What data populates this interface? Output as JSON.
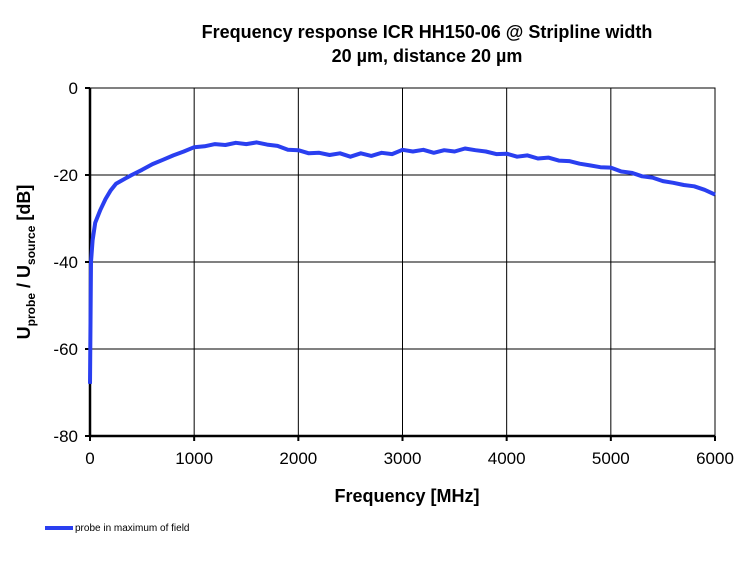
{
  "chart_data": {
    "type": "line",
    "title": [
      "Frequency response ICR HH150-06 @ Stripline  width",
      "20 µm, distance 20 µm"
    ],
    "xlabel": "Frequency [MHz]",
    "ylabel": {
      "main1": "U",
      "sub1": "probe",
      "mid": " / U",
      "sub2": "source",
      "tail": " [dB]"
    },
    "xlim": [
      0,
      6000
    ],
    "ylim": [
      -80,
      0
    ],
    "xticks": [
      "0",
      "1000",
      "2000",
      "3000",
      "4000",
      "5000",
      "6000"
    ],
    "yticks": [
      "0",
      "-20",
      "-40",
      "-60",
      "-80"
    ],
    "grid": true,
    "legend_position": "bottom-left",
    "series": [
      {
        "name": "probe in maximum of field",
        "color": "#2a3ff0",
        "x": [
          0,
          10,
          25,
          50,
          100,
          150,
          200,
          250,
          300,
          400,
          500,
          600,
          700,
          800,
          900,
          1000,
          1100,
          1200,
          1300,
          1400,
          1500,
          1600,
          1700,
          1800,
          1900,
          2000,
          2100,
          2200,
          2300,
          2400,
          2500,
          2600,
          2700,
          2800,
          2900,
          3000,
          3100,
          3200,
          3300,
          3400,
          3500,
          3600,
          3700,
          3800,
          3900,
          4000,
          4100,
          4200,
          4300,
          4400,
          4500,
          4600,
          4700,
          4800,
          4900,
          5000,
          5100,
          5200,
          5300,
          5400,
          5500,
          5600,
          5700,
          5800,
          5900,
          6000
        ],
        "y": [
          -68,
          -40,
          -35,
          -31,
          -28,
          -25.5,
          -23.5,
          -22,
          -21.3,
          -20,
          -18.8,
          -17.5,
          -16.5,
          -15.5,
          -14.6,
          -13.6,
          -13.4,
          -12.9,
          -13.1,
          -12.6,
          -12.9,
          -12.5,
          -13,
          -13.3,
          -14.2,
          -14.3,
          -15,
          -14.9,
          -15.4,
          -15,
          -15.8,
          -15,
          -15.6,
          -14.9,
          -15.2,
          -14.2,
          -14.6,
          -14.2,
          -14.9,
          -14.3,
          -14.6,
          -13.9,
          -14.3,
          -14.6,
          -15.2,
          -15.1,
          -15.8,
          -15.5,
          -16.2,
          -16,
          -16.7,
          -16.8,
          -17.4,
          -17.8,
          -18.2,
          -18.3,
          -19.2,
          -19.5,
          -20.3,
          -20.6,
          -21.4,
          -21.8,
          -22.3,
          -22.6,
          -23.4,
          -24.5
        ]
      }
    ]
  }
}
